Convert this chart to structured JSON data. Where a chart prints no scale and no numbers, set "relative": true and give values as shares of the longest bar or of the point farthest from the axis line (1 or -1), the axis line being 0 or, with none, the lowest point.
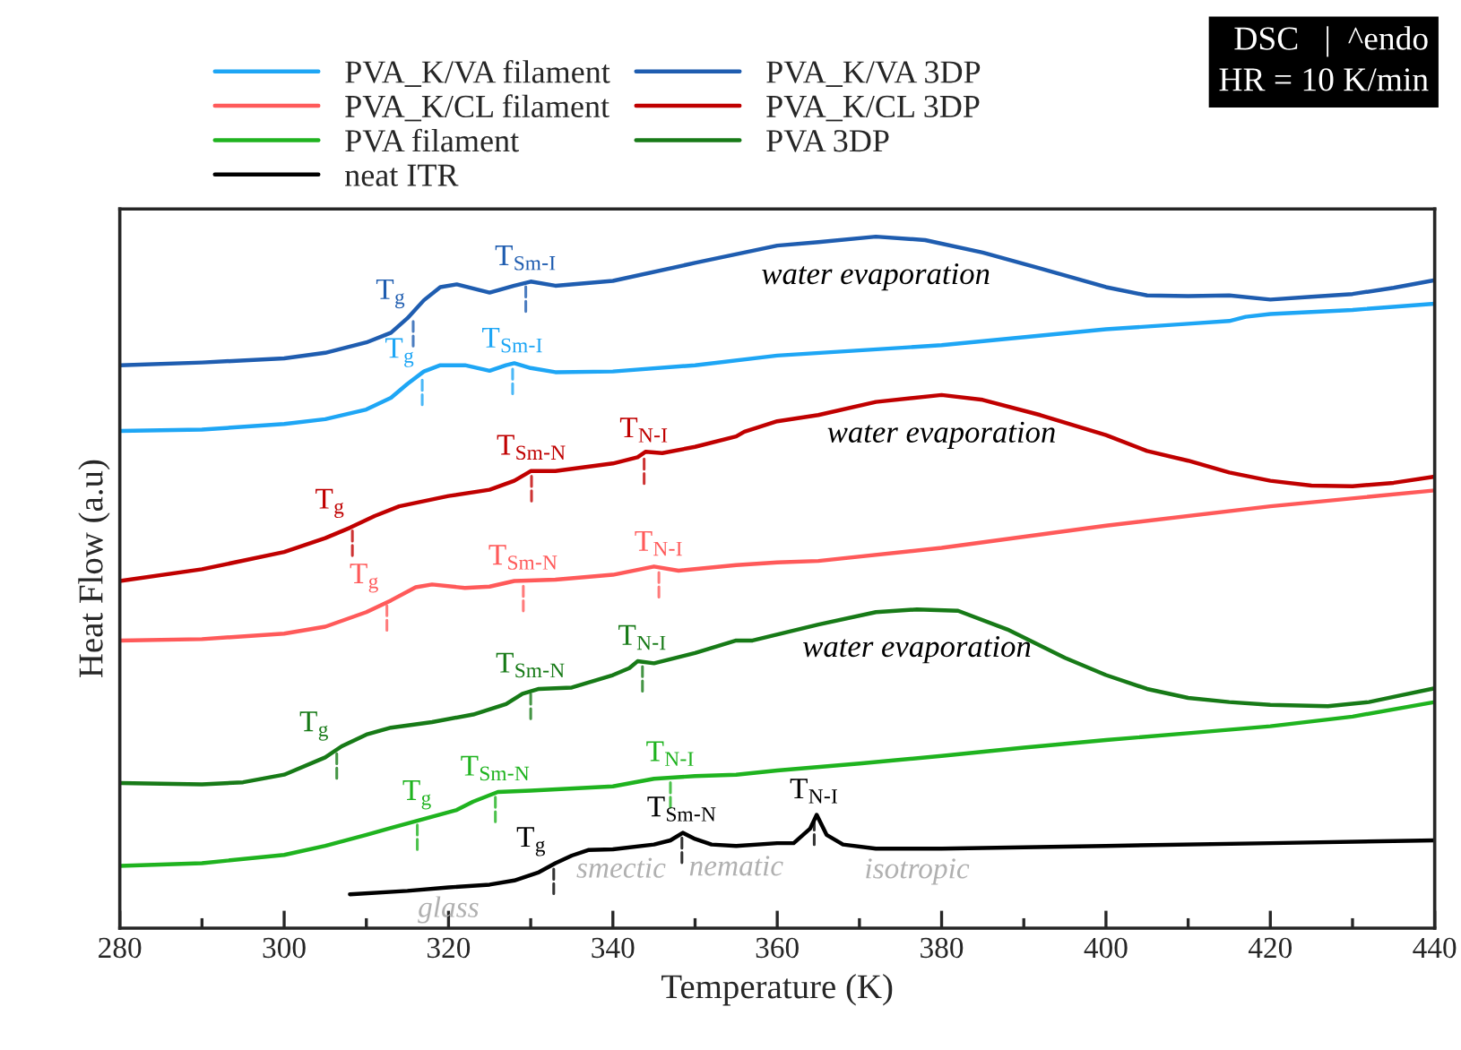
{
  "chart_data": {
    "type": "line",
    "relative": true,
    "xlabel": "Temperature (K)",
    "ylabel": "Heat Flow (a.u)",
    "xlim": [
      280,
      440
    ],
    "xticks": [
      280,
      300,
      320,
      340,
      360,
      380,
      400,
      420,
      440
    ],
    "legend": "top",
    "grid": false,
    "line_style": "solid",
    "series": [
      {
        "name": "PVA_K/VA filament",
        "color": "#1ea6f5",
        "x": [
          280,
          290,
          300,
          305,
          310,
          313,
          315,
          317,
          319,
          322,
          325,
          327,
          328,
          330,
          333,
          340,
          350,
          360,
          380,
          400,
          410,
          415,
          417,
          420,
          430,
          440
        ],
        "values": [
          0.719,
          0.721,
          0.729,
          0.736,
          0.75,
          0.767,
          0.787,
          0.805,
          0.814,
          0.814,
          0.806,
          0.814,
          0.817,
          0.81,
          0.804,
          0.805,
          0.814,
          0.828,
          0.843,
          0.866,
          0.874,
          0.878,
          0.884,
          0.888,
          0.894,
          0.903
        ]
      },
      {
        "name": "PVA_K/VA 3DP",
        "color": "#1f5db0",
        "x": [
          280,
          290,
          300,
          305,
          310,
          313,
          315,
          317,
          319,
          321,
          325,
          328,
          330,
          333,
          340,
          350,
          360,
          365,
          372,
          378,
          385,
          392,
          400,
          405,
          410,
          415,
          420,
          425,
          430,
          435,
          440
        ],
        "values": [
          0.814,
          0.818,
          0.824,
          0.832,
          0.847,
          0.861,
          0.882,
          0.908,
          0.927,
          0.931,
          0.919,
          0.929,
          0.935,
          0.929,
          0.936,
          0.962,
          0.987,
          0.992,
          1.0,
          0.995,
          0.977,
          0.954,
          0.927,
          0.915,
          0.914,
          0.915,
          0.909,
          0.913,
          0.917,
          0.926,
          0.937
        ]
      },
      {
        "name": "PVA_K/CL filament",
        "color": "#ff5a5a",
        "x": [
          280,
          290,
          300,
          305,
          310,
          313,
          316,
          318,
          322,
          325,
          328,
          333,
          340,
          345,
          348,
          355,
          360,
          365,
          380,
          400,
          420,
          440
        ],
        "values": [
          0.416,
          0.418,
          0.426,
          0.436,
          0.457,
          0.474,
          0.493,
          0.497,
          0.492,
          0.494,
          0.502,
          0.504,
          0.511,
          0.523,
          0.517,
          0.525,
          0.529,
          0.531,
          0.55,
          0.582,
          0.61,
          0.633
        ]
      },
      {
        "name": "PVA_K/CL 3DP",
        "color": "#c00000",
        "x": [
          280,
          290,
          300,
          305,
          308,
          311,
          314,
          320,
          325,
          328,
          330,
          333,
          340,
          343,
          344,
          346,
          350,
          355,
          356,
          360,
          365,
          372,
          380,
          385,
          392,
          400,
          405,
          410,
          415,
          420,
          425,
          430,
          435,
          440
        ],
        "values": [
          0.502,
          0.519,
          0.544,
          0.564,
          0.579,
          0.596,
          0.61,
          0.625,
          0.634,
          0.647,
          0.661,
          0.661,
          0.672,
          0.681,
          0.689,
          0.687,
          0.696,
          0.711,
          0.718,
          0.733,
          0.742,
          0.761,
          0.771,
          0.764,
          0.742,
          0.713,
          0.69,
          0.676,
          0.659,
          0.647,
          0.64,
          0.639,
          0.644,
          0.653
        ]
      },
      {
        "name": "PVA filament",
        "color": "#1fb31f",
        "x": [
          280,
          290,
          300,
          305,
          310,
          313,
          317,
          321,
          323,
          326,
          330,
          340,
          345,
          350,
          355,
          360,
          370,
          380,
          390,
          400,
          410,
          420,
          430,
          440
        ],
        "values": [
          0.09,
          0.094,
          0.106,
          0.119,
          0.135,
          0.145,
          0.158,
          0.171,
          0.183,
          0.197,
          0.199,
          0.205,
          0.216,
          0.22,
          0.222,
          0.228,
          0.238,
          0.249,
          0.261,
          0.272,
          0.282,
          0.292,
          0.306,
          0.327
        ]
      },
      {
        "name": "PVA 3DP",
        "color": "#177a17",
        "x": [
          280,
          290,
          295,
          300,
          305,
          307,
          310,
          313,
          318,
          323,
          327,
          329,
          331,
          335,
          340,
          342,
          343,
          345,
          350,
          355,
          357,
          365,
          372,
          377,
          382,
          388,
          395,
          400,
          405,
          410,
          415,
          420,
          427,
          432,
          436,
          440
        ],
        "values": [
          0.21,
          0.208,
          0.211,
          0.222,
          0.247,
          0.263,
          0.28,
          0.29,
          0.298,
          0.309,
          0.324,
          0.339,
          0.346,
          0.348,
          0.366,
          0.376,
          0.386,
          0.383,
          0.398,
          0.416,
          0.416,
          0.439,
          0.457,
          0.461,
          0.459,
          0.432,
          0.391,
          0.366,
          0.346,
          0.333,
          0.327,
          0.323,
          0.321,
          0.327,
          0.337,
          0.347
        ]
      },
      {
        "name": "neat ITR",
        "color": "#000000",
        "x": [
          308,
          315,
          320,
          325,
          328,
          331,
          333,
          335,
          337,
          340,
          345,
          347,
          348.5,
          350,
          352,
          355,
          360,
          362,
          364,
          364.8,
          366,
          368,
          372,
          380,
          400,
          420,
          440
        ],
        "values": [
          0.049,
          0.054,
          0.059,
          0.063,
          0.069,
          0.081,
          0.094,
          0.105,
          0.113,
          0.114,
          0.121,
          0.127,
          0.138,
          0.129,
          0.121,
          0.119,
          0.123,
          0.123,
          0.144,
          0.164,
          0.135,
          0.121,
          0.115,
          0.115,
          0.119,
          0.123,
          0.127
        ]
      }
    ],
    "annotations": [
      "DSC   |  ^endo\nHR = 10 K/min",
      {
        "text": "T$_{g}$",
        "x": 315.7,
        "y": 0.885
      },
      {
        "text": "T$_{Sm-I}$",
        "x": 329.4,
        "y": 0.935
      },
      {
        "text": "T$_{g}$",
        "x": 316.8,
        "y": 0.8
      },
      {
        "text": "T$_{Sm-I}$",
        "x": 327.8,
        "y": 0.816
      },
      {
        "text": "T$_{g}$",
        "x": 308.3,
        "y": 0.582
      },
      {
        "text": "T$_{Sm-N}$",
        "x": 330.1,
        "y": 0.661
      },
      {
        "text": "T$_{N-I}$",
        "x": 343.8,
        "y": 0.686
      },
      {
        "text": "T$_{g}$",
        "x": 312.5,
        "y": 0.474
      },
      {
        "text": "T$_{Sm-N}$",
        "x": 329.1,
        "y": 0.502
      },
      {
        "text": "T$_{N-I}$",
        "x": 345.6,
        "y": 0.522
      },
      {
        "text": "T$_{g}$",
        "x": 306.4,
        "y": 0.26
      },
      {
        "text": "T$_{Sm-N}$",
        "x": 330.0,
        "y": 0.346
      },
      {
        "text": "T$_{N-I}$",
        "x": 343.6,
        "y": 0.386
      },
      {
        "text": "T$_{g}$",
        "x": 316.2,
        "y": 0.157
      },
      {
        "text": "T$_{Sm-N}$",
        "x": 325.7,
        "y": 0.197
      },
      {
        "text": "T$_{N-I}$",
        "x": 347.0,
        "y": 0.218
      },
      {
        "text": "T$_{g}$",
        "x": 332.8,
        "y": 0.093
      },
      {
        "text": "T$_{Sm-N}$",
        "x": 348.4,
        "y": 0.138
      },
      {
        "text": "T$_{N-I}$",
        "x": 364.5,
        "y": 0.164
      },
      {
        "text": "water evaporation",
        "x": 372,
        "y": 1.0
      },
      {
        "text": "water evaporation",
        "x": 380,
        "y": 0.771
      },
      {
        "text": "water evaporation",
        "x": 377,
        "y": 0.461
      },
      {
        "text": "glass",
        "x": 320,
        "y": 0.059
      },
      {
        "text": "smectic",
        "x": 341,
        "y": 0.116
      },
      {
        "text": "nematic",
        "x": 355,
        "y": 0.119
      },
      {
        "text": "isotropic",
        "x": 377,
        "y": 0.115
      }
    ]
  }
}
